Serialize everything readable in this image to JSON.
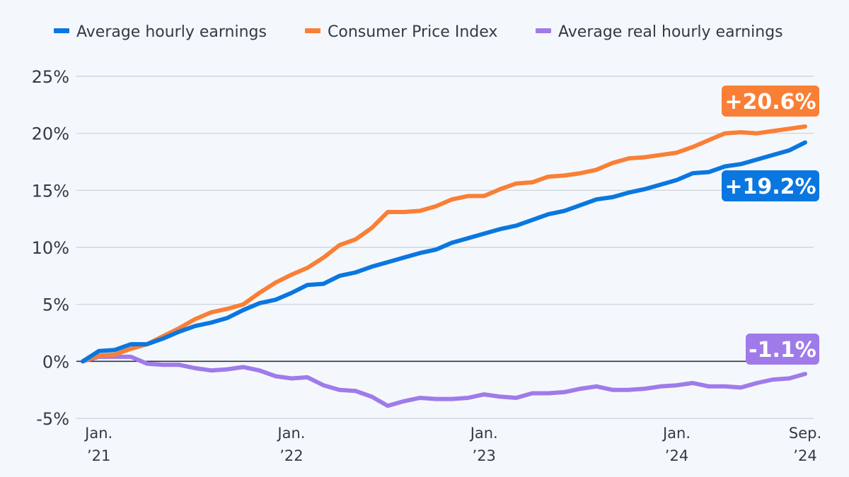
{
  "chart_data": {
    "type": "line",
    "title": "",
    "xlabel": "",
    "ylabel": "",
    "ylim": [
      -5,
      25
    ],
    "yticks": [
      {
        "value": 25,
        "label": "25%"
      },
      {
        "value": 20,
        "label": "20%"
      },
      {
        "value": 15,
        "label": "15%"
      },
      {
        "value": 10,
        "label": "10%"
      },
      {
        "value": 5,
        "label": "5%"
      },
      {
        "value": 0,
        "label": "0%"
      },
      {
        "value": -5,
        "label": "-5%"
      }
    ],
    "xticks": [
      {
        "index": 1,
        "line1": "Jan.",
        "line2": "’21"
      },
      {
        "index": 13,
        "line1": "Jan.",
        "line2": "’22"
      },
      {
        "index": 25,
        "line1": "Jan.",
        "line2": "’23"
      },
      {
        "index": 37,
        "line1": "Jan.",
        "line2": "’24"
      },
      {
        "index": 45,
        "line1": "Sep.",
        "line2": "’24"
      }
    ],
    "x_count": 46,
    "legend_position": "top",
    "series": [
      {
        "name": "Average hourly earnings",
        "color": "#0a77e0",
        "end_label": "+19.2%",
        "values": [
          0,
          0.9,
          1.0,
          1.5,
          1.5,
          2.0,
          2.6,
          3.1,
          3.4,
          3.8,
          4.5,
          5.1,
          5.4,
          6.0,
          6.7,
          6.8,
          7.5,
          7.8,
          8.3,
          8.7,
          9.1,
          9.5,
          9.8,
          10.4,
          10.8,
          11.2,
          11.6,
          11.9,
          12.4,
          12.9,
          13.2,
          13.7,
          14.2,
          14.4,
          14.8,
          15.1,
          15.5,
          15.9,
          16.5,
          16.6,
          17.1,
          17.3,
          17.7,
          18.1,
          18.5,
          19.2
        ]
      },
      {
        "name": "Consumer Price Index",
        "color": "#fa7f36",
        "end_label": "+20.6%",
        "values": [
          0,
          0.5,
          0.6,
          1.1,
          1.5,
          2.2,
          2.9,
          3.7,
          4.3,
          4.6,
          5.0,
          6.0,
          6.9,
          7.6,
          8.2,
          9.1,
          10.2,
          10.7,
          11.7,
          13.1,
          13.1,
          13.2,
          13.6,
          14.2,
          14.5,
          14.5,
          15.1,
          15.6,
          15.7,
          16.2,
          16.3,
          16.5,
          16.8,
          17.4,
          17.8,
          17.9,
          18.1,
          18.3,
          18.8,
          19.4,
          20.0,
          20.1,
          20.0,
          20.2,
          20.4,
          20.6
        ]
      },
      {
        "name": "Average real hourly earnings",
        "color": "#9f7bea",
        "end_label": "-1.1%",
        "values": [
          0,
          0.4,
          0.4,
          0.4,
          -0.2,
          -0.3,
          -0.3,
          -0.6,
          -0.8,
          -0.7,
          -0.5,
          -0.8,
          -1.3,
          -1.5,
          -1.4,
          -2.1,
          -2.5,
          -2.6,
          -3.1,
          -3.9,
          -3.5,
          -3.2,
          -3.3,
          -3.3,
          -3.2,
          -2.9,
          -3.1,
          -3.2,
          -2.8,
          -2.8,
          -2.7,
          -2.4,
          -2.2,
          -2.5,
          -2.5,
          -2.4,
          -2.2,
          -2.1,
          -1.9,
          -2.2,
          -2.2,
          -2.3,
          -1.9,
          -1.6,
          -1.5,
          -1.1
        ]
      }
    ]
  }
}
